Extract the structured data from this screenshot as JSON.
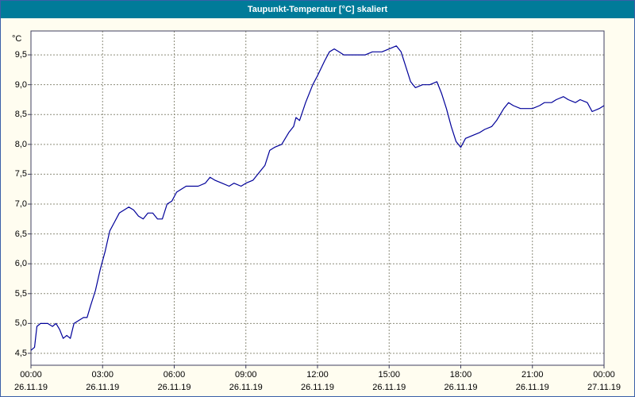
{
  "window": {
    "title": "Taupunkt-Temperatur [°C] skaliert"
  },
  "colors": {
    "titlebar": "#007b99",
    "line": "#000099",
    "plot_bg": "#ffffff",
    "page_bg": "#fffdf0",
    "grid": "#8c8c7a",
    "frame": "#3f3f5f",
    "border": "#3a5fa8"
  },
  "chart_data": {
    "type": "line",
    "title": "Taupunkt-Temperatur [°C] skaliert",
    "ylabel": "°C",
    "xlabel": "",
    "ylim": [
      4.3,
      9.9
    ],
    "xlim_hours": [
      0,
      24
    ],
    "grid": "dashed",
    "legend": "none",
    "y_ticks": [
      {
        "value": 4.5,
        "label": "4,5"
      },
      {
        "value": 5.0,
        "label": "5,0"
      },
      {
        "value": 5.5,
        "label": "5,5"
      },
      {
        "value": 6.0,
        "label": "6,0"
      },
      {
        "value": 6.5,
        "label": "6,5"
      },
      {
        "value": 7.0,
        "label": "7,0"
      },
      {
        "value": 7.5,
        "label": "7,5"
      },
      {
        "value": 8.0,
        "label": "8,0"
      },
      {
        "value": 8.5,
        "label": "8,5"
      },
      {
        "value": 9.0,
        "label": "9,0"
      },
      {
        "value": 9.5,
        "label": "9,5"
      }
    ],
    "x_ticks": [
      {
        "hour": 0,
        "time": "00:00",
        "date": "26.11.19"
      },
      {
        "hour": 3,
        "time": "03:00",
        "date": "26.11.19"
      },
      {
        "hour": 6,
        "time": "06:00",
        "date": "26.11.19"
      },
      {
        "hour": 9,
        "time": "09:00",
        "date": "26.11.19"
      },
      {
        "hour": 12,
        "time": "12:00",
        "date": "26.11.19"
      },
      {
        "hour": 15,
        "time": "15:00",
        "date": "26.11.19"
      },
      {
        "hour": 18,
        "time": "18:00",
        "date": "26.11.19"
      },
      {
        "hour": 21,
        "time": "21:00",
        "date": "26.11.19"
      },
      {
        "hour": 24,
        "time": "00:00",
        "date": "27.11.19"
      }
    ],
    "x": [
      0,
      0.15,
      0.25,
      0.4,
      0.7,
      0.9,
      1.05,
      1.2,
      1.35,
      1.5,
      1.65,
      1.8,
      2.0,
      2.2,
      2.35,
      2.5,
      2.7,
      2.9,
      3.1,
      3.3,
      3.5,
      3.7,
      3.9,
      4.1,
      4.3,
      4.5,
      4.7,
      4.9,
      5.1,
      5.3,
      5.5,
      5.7,
      5.9,
      6.1,
      6.3,
      6.5,
      6.8,
      7.0,
      7.3,
      7.5,
      7.7,
      8.0,
      8.3,
      8.5,
      8.8,
      9.0,
      9.3,
      9.5,
      9.8,
      10.0,
      10.2,
      10.5,
      10.8,
      11.0,
      11.1,
      11.25,
      11.5,
      11.8,
      12.0,
      12.3,
      12.5,
      12.7,
      12.9,
      13.1,
      13.5,
      14.0,
      14.3,
      14.7,
      15.0,
      15.3,
      15.5,
      15.7,
      15.9,
      16.1,
      16.4,
      16.7,
      17.0,
      17.2,
      17.4,
      17.6,
      17.8,
      18.0,
      18.2,
      18.5,
      18.8,
      19.0,
      19.3,
      19.5,
      19.8,
      20.0,
      20.2,
      20.5,
      20.8,
      21.0,
      21.3,
      21.5,
      21.8,
      22.0,
      22.3,
      22.5,
      22.8,
      23.0,
      23.3,
      23.5,
      23.8,
      24.0
    ],
    "y": [
      4.55,
      4.6,
      4.95,
      5.0,
      5.0,
      4.95,
      5.0,
      4.9,
      4.75,
      4.8,
      4.75,
      5.0,
      5.05,
      5.1,
      5.1,
      5.3,
      5.55,
      5.9,
      6.2,
      6.55,
      6.7,
      6.85,
      6.9,
      6.95,
      6.9,
      6.8,
      6.75,
      6.85,
      6.85,
      6.75,
      6.75,
      7.0,
      7.05,
      7.2,
      7.25,
      7.3,
      7.3,
      7.3,
      7.35,
      7.45,
      7.4,
      7.35,
      7.3,
      7.35,
      7.3,
      7.35,
      7.4,
      7.5,
      7.65,
      7.9,
      7.95,
      8.0,
      8.2,
      8.3,
      8.45,
      8.4,
      8.7,
      9.0,
      9.15,
      9.4,
      9.55,
      9.6,
      9.55,
      9.5,
      9.5,
      9.5,
      9.55,
      9.55,
      9.6,
      9.65,
      9.55,
      9.3,
      9.05,
      8.95,
      9.0,
      9.0,
      9.05,
      8.85,
      8.6,
      8.3,
      8.05,
      7.95,
      8.1,
      8.15,
      8.2,
      8.25,
      8.3,
      8.4,
      8.6,
      8.7,
      8.65,
      8.6,
      8.6,
      8.6,
      8.65,
      8.7,
      8.7,
      8.75,
      8.8,
      8.75,
      8.7,
      8.75,
      8.7,
      8.55,
      8.6,
      8.65
    ]
  }
}
